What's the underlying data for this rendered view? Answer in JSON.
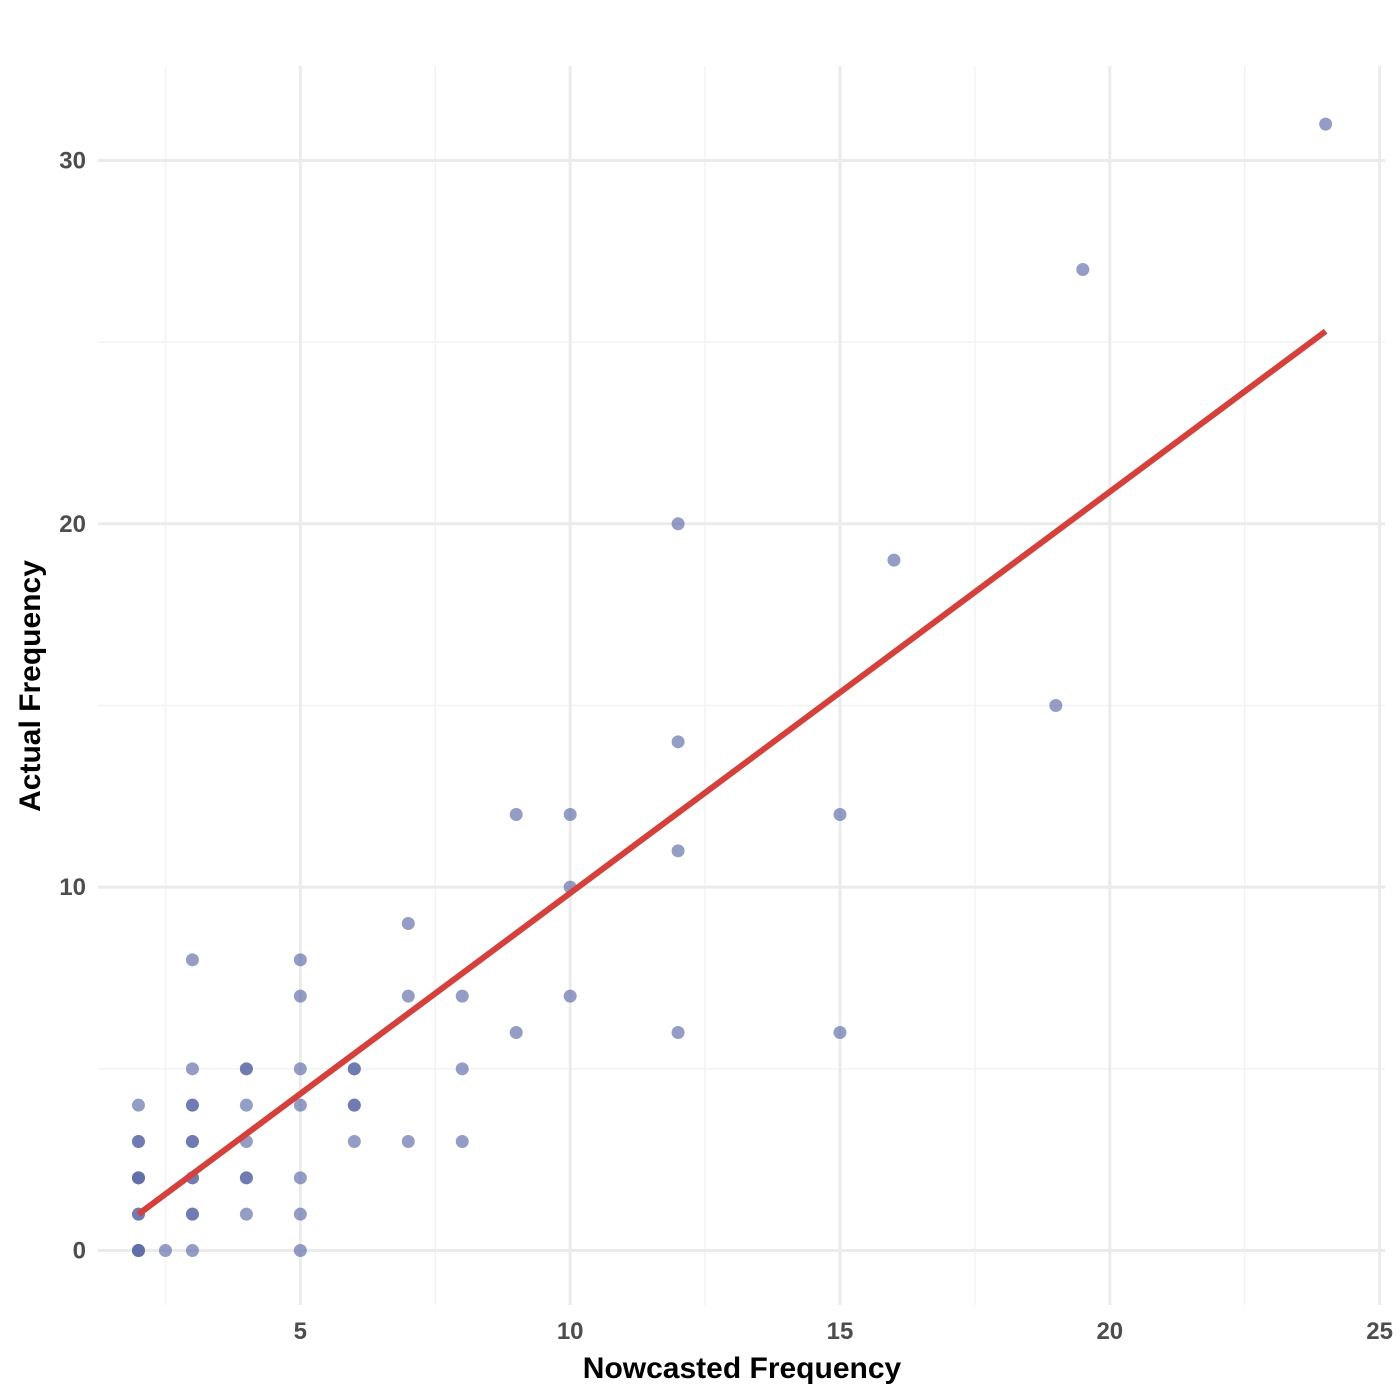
{
  "chart_data": {
    "type": "scatter",
    "xlabel": "Nowcasted Frequency",
    "ylabel": "Actual Frequency",
    "xlim": [
      1.25,
      25.1
    ],
    "ylim": [
      -1.5,
      32.6
    ],
    "x_ticks": [
      5,
      10,
      15,
      20,
      25
    ],
    "y_ticks": [
      0,
      10,
      20,
      30
    ],
    "x_minor_ticks": [
      2.5,
      7.5,
      12.5,
      17.5,
      22.5
    ],
    "y_minor_ticks": [
      5,
      15,
      25
    ],
    "grid": true,
    "legend": "none",
    "point_color": "#5b69a8",
    "line_color": "#d7403a",
    "points": [
      {
        "x": 2,
        "y": 0
      },
      {
        "x": 2,
        "y": 0
      },
      {
        "x": 2,
        "y": 0
      },
      {
        "x": 2,
        "y": 1
      },
      {
        "x": 2,
        "y": 1
      },
      {
        "x": 2,
        "y": 2
      },
      {
        "x": 2,
        "y": 2
      },
      {
        "x": 2,
        "y": 2
      },
      {
        "x": 2,
        "y": 3
      },
      {
        "x": 2,
        "y": 3
      },
      {
        "x": 2,
        "y": 4
      },
      {
        "x": 2.5,
        "y": 0
      },
      {
        "x": 3,
        "y": 0
      },
      {
        "x": 3,
        "y": 1
      },
      {
        "x": 3,
        "y": 1
      },
      {
        "x": 3,
        "y": 2
      },
      {
        "x": 3,
        "y": 2
      },
      {
        "x": 3,
        "y": 3
      },
      {
        "x": 3,
        "y": 3
      },
      {
        "x": 3,
        "y": 4
      },
      {
        "x": 3,
        "y": 4
      },
      {
        "x": 3,
        "y": 5
      },
      {
        "x": 3,
        "y": 8
      },
      {
        "x": 4,
        "y": 1
      },
      {
        "x": 4,
        "y": 2
      },
      {
        "x": 4,
        "y": 2
      },
      {
        "x": 4,
        "y": 3
      },
      {
        "x": 4,
        "y": 4
      },
      {
        "x": 4,
        "y": 5
      },
      {
        "x": 4,
        "y": 5
      },
      {
        "x": 5,
        "y": 0
      },
      {
        "x": 5,
        "y": 1
      },
      {
        "x": 5,
        "y": 2
      },
      {
        "x": 5,
        "y": 4
      },
      {
        "x": 5,
        "y": 5
      },
      {
        "x": 5,
        "y": 7
      },
      {
        "x": 5,
        "y": 8
      },
      {
        "x": 6,
        "y": 3
      },
      {
        "x": 6,
        "y": 4
      },
      {
        "x": 6,
        "y": 4
      },
      {
        "x": 6,
        "y": 5
      },
      {
        "x": 6,
        "y": 5
      },
      {
        "x": 7,
        "y": 3
      },
      {
        "x": 7,
        "y": 7
      },
      {
        "x": 7,
        "y": 9
      },
      {
        "x": 8,
        "y": 3
      },
      {
        "x": 8,
        "y": 5
      },
      {
        "x": 8,
        "y": 7
      },
      {
        "x": 9,
        "y": 6
      },
      {
        "x": 9,
        "y": 12
      },
      {
        "x": 10,
        "y": 7
      },
      {
        "x": 10,
        "y": 10
      },
      {
        "x": 10,
        "y": 12
      },
      {
        "x": 12,
        "y": 6
      },
      {
        "x": 12,
        "y": 11
      },
      {
        "x": 12,
        "y": 14
      },
      {
        "x": 12,
        "y": 20
      },
      {
        "x": 15,
        "y": 6
      },
      {
        "x": 15,
        "y": 12
      },
      {
        "x": 16,
        "y": 19
      },
      {
        "x": 19,
        "y": 15
      },
      {
        "x": 19.5,
        "y": 27
      },
      {
        "x": 24,
        "y": 31
      }
    ],
    "fit_line": {
      "x": [
        2,
        24
      ],
      "y": [
        1,
        25.3
      ]
    }
  }
}
